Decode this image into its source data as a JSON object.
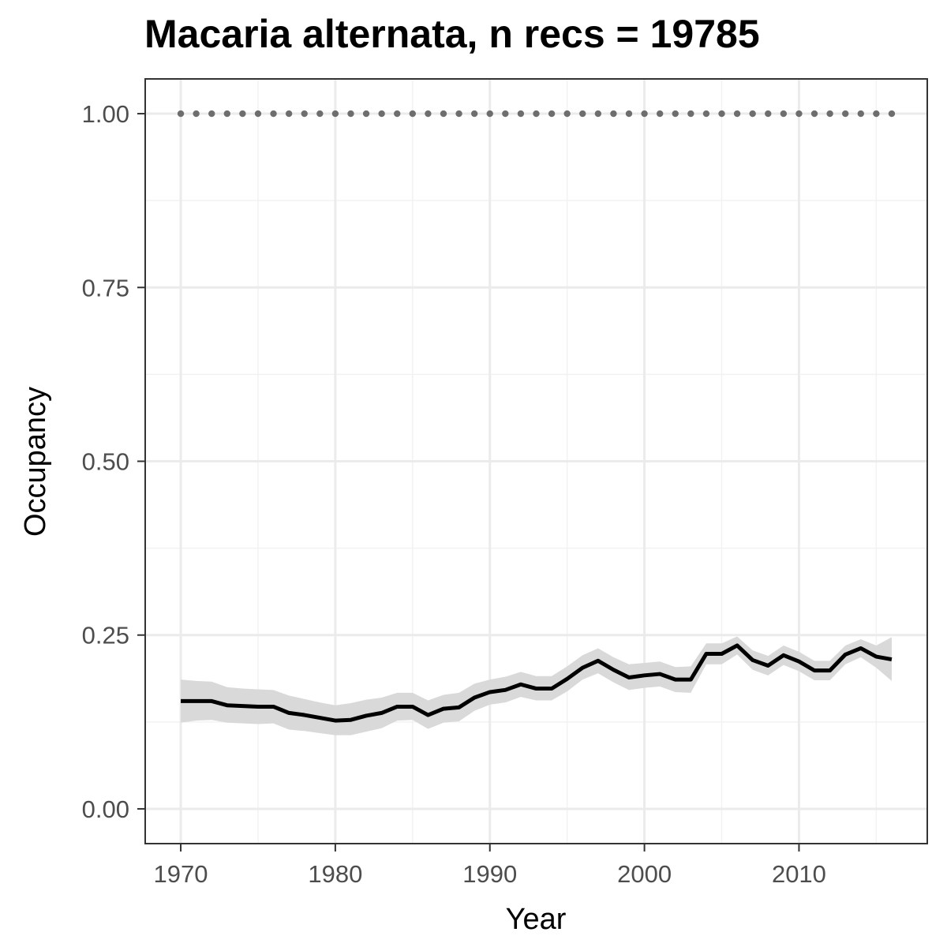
{
  "chart_data": {
    "type": "line",
    "title": "Macaria alternata, n recs = 19785",
    "xlabel": "Year",
    "ylabel": "Occupancy",
    "xlim": [
      1967.7,
      2018.3
    ],
    "ylim": [
      -0.05,
      1.05
    ],
    "x_ticks": [
      1970,
      1980,
      1990,
      2000,
      2010
    ],
    "x_tick_labels": [
      "1970",
      "1980",
      "1990",
      "2000",
      "2010"
    ],
    "y_ticks": [
      0,
      0.25,
      0.5,
      0.75,
      1
    ],
    "y_tick_labels": [
      "0.00",
      "0.25",
      "0.50",
      "0.75",
      "1.00"
    ],
    "grid": true,
    "x": [
      1970,
      1971,
      1972,
      1973,
      1974,
      1975,
      1976,
      1977,
      1978,
      1979,
      1980,
      1981,
      1982,
      1983,
      1984,
      1985,
      1986,
      1987,
      1988,
      1989,
      1990,
      1991,
      1992,
      1993,
      1994,
      1995,
      1996,
      1997,
      1998,
      1999,
      2000,
      2001,
      2002,
      2003,
      2004,
      2005,
      2006,
      2007,
      2008,
      2009,
      2010,
      2011,
      2012,
      2013,
      2014,
      2015,
      2016
    ],
    "series": [
      {
        "role": "mean",
        "color": "#000000",
        "values": [
          0.155,
          0.155,
          0.155,
          0.149,
          0.148,
          0.147,
          0.147,
          0.138,
          0.135,
          0.131,
          0.127,
          0.128,
          0.134,
          0.138,
          0.147,
          0.147,
          0.135,
          0.144,
          0.146,
          0.16,
          0.168,
          0.171,
          0.179,
          0.173,
          0.173,
          0.187,
          0.203,
          0.213,
          0.2,
          0.189,
          0.192,
          0.194,
          0.186,
          0.186,
          0.223,
          0.223,
          0.235,
          0.214,
          0.206,
          0.221,
          0.212,
          0.199,
          0.199,
          0.222,
          0.231,
          0.219,
          0.215
        ]
      },
      {
        "role": "upper",
        "color": "#d9d9d9",
        "values": [
          0.186,
          0.184,
          0.183,
          0.175,
          0.173,
          0.172,
          0.171,
          0.163,
          0.158,
          0.153,
          0.149,
          0.152,
          0.157,
          0.16,
          0.167,
          0.167,
          0.156,
          0.164,
          0.167,
          0.18,
          0.186,
          0.19,
          0.197,
          0.191,
          0.191,
          0.205,
          0.221,
          0.231,
          0.218,
          0.208,
          0.21,
          0.212,
          0.204,
          0.205,
          0.238,
          0.238,
          0.248,
          0.228,
          0.22,
          0.235,
          0.226,
          0.213,
          0.213,
          0.235,
          0.244,
          0.235,
          0.247
        ]
      },
      {
        "role": "lower",
        "color": "#d9d9d9",
        "values": [
          0.124,
          0.127,
          0.128,
          0.124,
          0.123,
          0.122,
          0.123,
          0.114,
          0.112,
          0.109,
          0.106,
          0.106,
          0.111,
          0.116,
          0.127,
          0.128,
          0.115,
          0.124,
          0.126,
          0.141,
          0.15,
          0.153,
          0.161,
          0.156,
          0.156,
          0.169,
          0.186,
          0.195,
          0.182,
          0.171,
          0.174,
          0.176,
          0.168,
          0.167,
          0.208,
          0.208,
          0.222,
          0.2,
          0.192,
          0.207,
          0.198,
          0.185,
          0.185,
          0.208,
          0.218,
          0.203,
          0.184
        ]
      },
      {
        "role": "reference",
        "style": "dotted",
        "color": "#6e6e6e",
        "values": [
          1,
          1,
          1,
          1,
          1,
          1,
          1,
          1,
          1,
          1,
          1,
          1,
          1,
          1,
          1,
          1,
          1,
          1,
          1,
          1,
          1,
          1,
          1,
          1,
          1,
          1,
          1,
          1,
          1,
          1,
          1,
          1,
          1,
          1,
          1,
          1,
          1,
          1,
          1,
          1,
          1,
          1,
          1,
          1,
          1,
          1,
          1
        ]
      }
    ]
  }
}
